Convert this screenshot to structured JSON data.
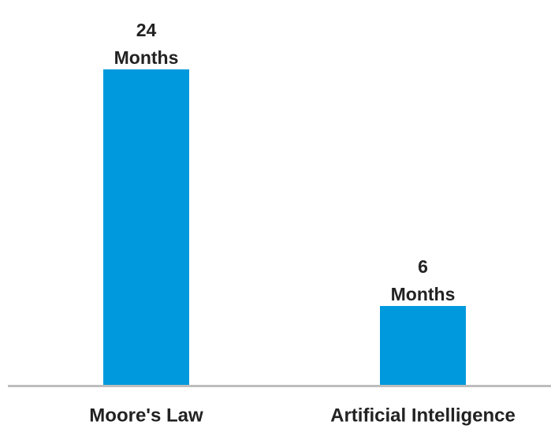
{
  "chart_data": {
    "type": "bar",
    "categories": [
      "Moore's Law",
      "Artificial Intelligence"
    ],
    "values": [
      24,
      6
    ],
    "value_labels": [
      [
        "24",
        "Months"
      ],
      [
        "6",
        "Months"
      ]
    ],
    "color": "#0099dd"
  }
}
